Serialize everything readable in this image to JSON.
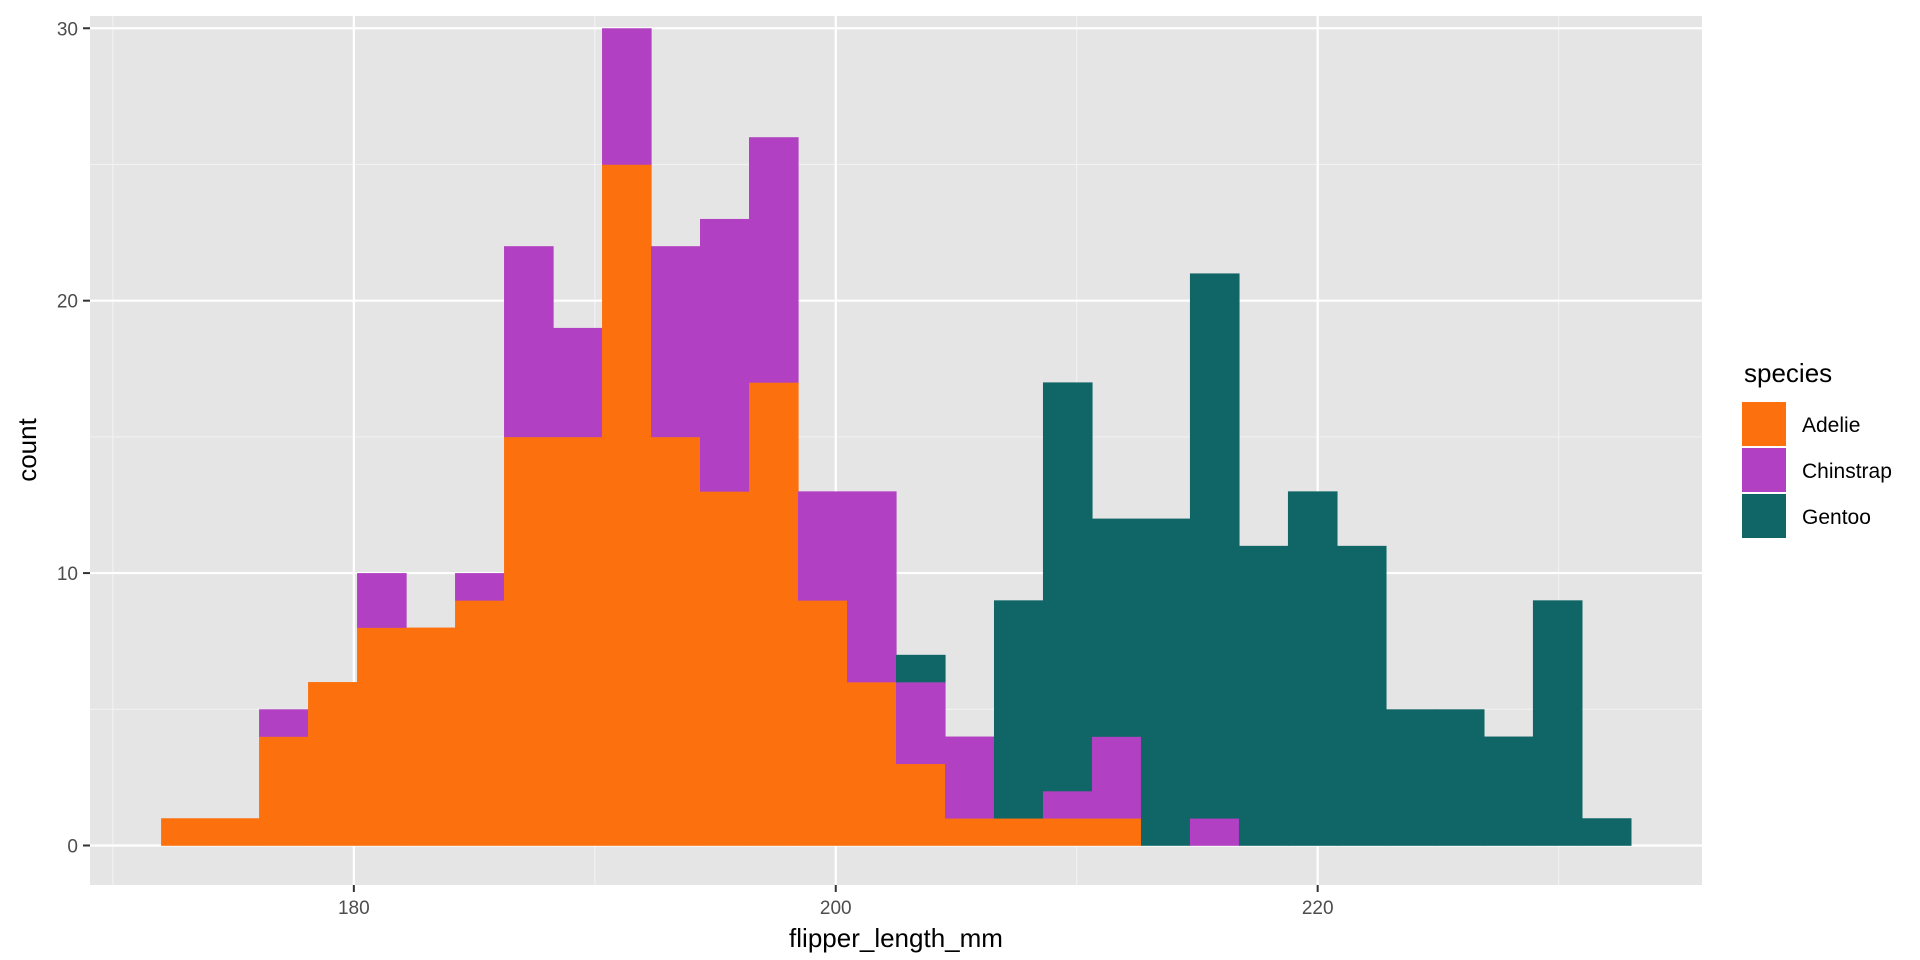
{
  "chart_data": {
    "type": "bar",
    "stacked": true,
    "xlabel": "flipper_length_mm",
    "ylabel": "count",
    "xlim": [
      169.05,
      235.95
    ],
    "ylim": [
      -1.45,
      30.45
    ],
    "x_ticks": [
      180,
      200,
      220
    ],
    "y_ticks": [
      0,
      10,
      20,
      30
    ],
    "grid": true,
    "legend": {
      "title": "species",
      "position": "right"
    },
    "bin_start": 172.0,
    "bin_width": 2.0333,
    "series": [
      {
        "name": "Adelie",
        "color": "#FC710E",
        "values": [
          1,
          1,
          4,
          6,
          8,
          8,
          9,
          15,
          15,
          25,
          15,
          13,
          17,
          9,
          6,
          3,
          1,
          1,
          1,
          1,
          0,
          0,
          0,
          0,
          0,
          0,
          0,
          0,
          0,
          0
        ]
      },
      {
        "name": "Chinstrap",
        "color": "#B240C2",
        "values": [
          0,
          0,
          1,
          0,
          2,
          0,
          1,
          7,
          4,
          5,
          7,
          10,
          9,
          4,
          7,
          3,
          3,
          0,
          1,
          3,
          0,
          1,
          0,
          0,
          0,
          0,
          0,
          0,
          0,
          0
        ]
      },
      {
        "name": "Gentoo",
        "color": "#106666",
        "values": [
          0,
          0,
          0,
          0,
          0,
          0,
          0,
          0,
          0,
          0,
          0,
          0,
          0,
          0,
          0,
          1,
          0,
          8,
          15,
          8,
          12,
          20,
          11,
          13,
          11,
          5,
          5,
          4,
          9,
          1
        ]
      }
    ]
  }
}
